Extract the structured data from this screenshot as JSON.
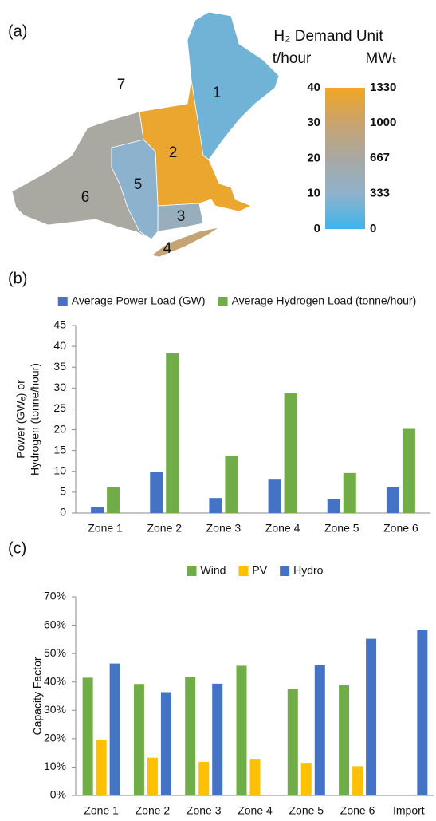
{
  "chart_data": [
    {
      "type": "choropleth",
      "panel_label": "(a)",
      "title": "H₂ Demand Unit",
      "axis_labels": [
        "t/hour",
        "MWₜ"
      ],
      "regions": [
        {
          "label": "1",
          "value": 6.2
        },
        {
          "label": "2",
          "value": 38.3
        },
        {
          "label": "3",
          "value": 13.8
        },
        {
          "label": "4",
          "value": 28.8
        },
        {
          "label": "5",
          "value": 9.6
        },
        {
          "label": "6",
          "value": 20.2
        }
      ],
      "other_label": "7",
      "ylim": [
        0,
        40
      ],
      "yticks": [
        0,
        10,
        20,
        30,
        40
      ],
      "y2lim": [
        0,
        1330
      ],
      "y2ticks": [
        0,
        333,
        667,
        1000,
        1330
      ],
      "colors": [
        "#3db5ea",
        "#8fb2cc",
        "#a8a8a2",
        "#c8a46e",
        "#f2a623"
      ]
    },
    {
      "type": "bar",
      "panel_label": "(b)",
      "y_label": [
        "Power (GWₑ) or",
        "Hydrogen (tonne/hour)"
      ],
      "categories": [
        "Zone 1",
        "Zone 2",
        "Zone 3",
        "Zone 4",
        "Zone 5",
        "Zone 6"
      ],
      "series": [
        {
          "name": "Average Power Load (GW)",
          "color": "#4472c4",
          "values": [
            1.4,
            9.8,
            3.6,
            8.2,
            3.3,
            6.2
          ]
        },
        {
          "name": "Average Hydrogen Load (tonne/hour)",
          "color": "#70ad47",
          "values": [
            6.2,
            38.3,
            13.8,
            28.8,
            9.6,
            20.2
          ]
        }
      ],
      "ylim": [
        0,
        45
      ],
      "yticks": [
        0,
        5,
        10,
        15,
        20,
        25,
        30,
        35,
        40,
        45
      ],
      "grid": false
    },
    {
      "type": "bar",
      "panel_label": "(c)",
      "y_label": [
        "Capacity Factor"
      ],
      "categories": [
        "Zone 1",
        "Zone 2",
        "Zone 3",
        "Zone 4",
        "Zone 5",
        "Zone 6",
        "Import"
      ],
      "series": [
        {
          "name": "Wind",
          "color": "#70ad47",
          "values": [
            41.5,
            39.3,
            41.7,
            45.7,
            37.5,
            39.0,
            null
          ]
        },
        {
          "name": "PV",
          "color": "#ffc000",
          "values": [
            19.6,
            13.3,
            11.8,
            12.9,
            11.5,
            10.3,
            null
          ]
        },
        {
          "name": "Hydro",
          "color": "#4472c4",
          "values": [
            46.5,
            36.4,
            39.4,
            null,
            45.9,
            55.2,
            58.2
          ]
        }
      ],
      "ylim": [
        0,
        70
      ],
      "yticks": [
        {
          "value": 0,
          "label": "0%"
        },
        {
          "value": 10,
          "label": "10%"
        },
        {
          "value": 20,
          "label": "20%"
        },
        {
          "value": 30,
          "label": "30%"
        },
        {
          "value": 40,
          "label": "40%"
        },
        {
          "value": 50,
          "label": "50%"
        },
        {
          "value": 60,
          "label": "60%"
        },
        {
          "value": 70,
          "label": "70%"
        }
      ],
      "grid": false
    }
  ]
}
